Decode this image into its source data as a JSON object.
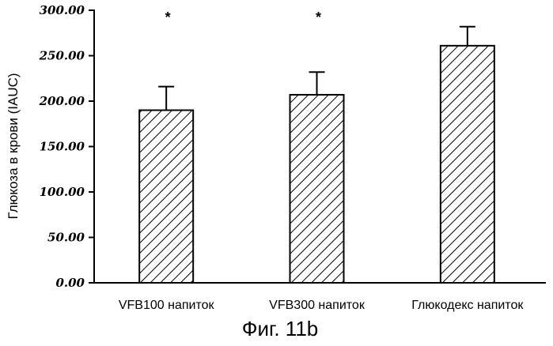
{
  "chart_data": {
    "type": "bar",
    "categories": [
      "VFB100 напиток",
      "VFB300 напиток",
      "Глюкодекс напиток"
    ],
    "values": [
      190,
      207,
      261
    ],
    "errors": [
      26,
      25,
      21
    ],
    "significance": [
      "*",
      "*",
      ""
    ],
    "ylabel": "Глюкоза в крови (IAUC)",
    "xlabel": "",
    "ylim": [
      0,
      300
    ],
    "yticks": [
      "0.00",
      "50.00",
      "100.00",
      "150.00",
      "200.00",
      "250.00",
      "300.00"
    ],
    "bar_fill": "diagonal-hatch",
    "grid": false
  },
  "caption": "Фиг. 11b"
}
